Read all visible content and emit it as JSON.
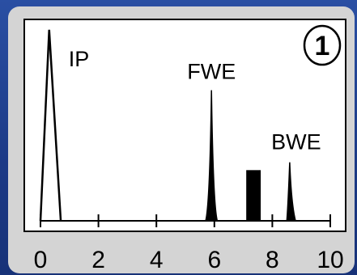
{
  "chart_data": {
    "type": "line",
    "xlim": [
      0,
      10
    ],
    "ylim": [
      0,
      1
    ],
    "x_ticks": [
      "0",
      "2",
      "4",
      "6",
      "8",
      "10"
    ],
    "badge": "1",
    "peaks": [
      {
        "label": "IP",
        "x": 0.3,
        "height": 0.98,
        "base_left": 0.0,
        "base_right": 0.7,
        "shape": "outline"
      },
      {
        "label": "FWE",
        "x": 5.9,
        "height": 0.67,
        "base_left": 5.7,
        "base_right": 6.1,
        "shape": "filled"
      },
      {
        "label": "",
        "x": 7.4,
        "height": 0.26,
        "base_left": 7.1,
        "base_right": 7.6,
        "shape": "bar"
      },
      {
        "label": "BWE",
        "x": 8.6,
        "height": 0.3,
        "base_left": 8.5,
        "base_right": 8.8,
        "shape": "filled"
      }
    ]
  },
  "colors": {
    "background": "#1f3f8c",
    "panel": "#d4d4d4",
    "plot_area": "#ffffff",
    "line": "#000000"
  }
}
